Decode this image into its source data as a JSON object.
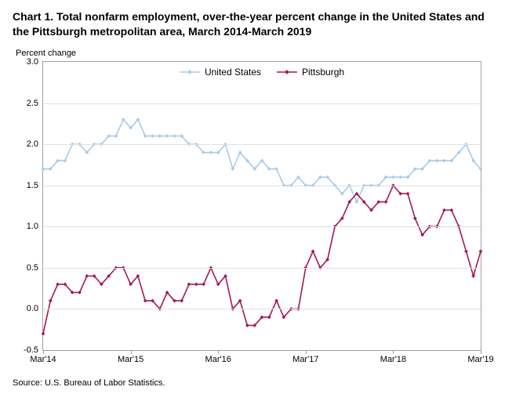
{
  "title": "Chart 1.  Total nonfarm employment, over-the-year percent change in the United States and the Pittsburgh metropolitan area, March 2014-March 2019",
  "ylabel": "Percent change",
  "source": "Source: U.S. Bureau of Labor Statistics.",
  "chart": {
    "type": "line",
    "background_color": "#ffffff",
    "grid_color": "#e0e0e0",
    "axis_color": "#a0a0a0",
    "title_fontsize": 14,
    "label_fontsize": 11,
    "tick_fontsize": 11,
    "legend_fontsize": 12,
    "line_width": 1.6,
    "marker_size": 2.4,
    "ylim": [
      -0.5,
      3.0
    ],
    "ytick_step": 0.5,
    "yticks": [
      -0.5,
      0.0,
      0.5,
      1.0,
      1.5,
      2.0,
      2.5,
      3.0
    ],
    "x_count": 61,
    "xtick_indices": [
      0,
      12,
      24,
      36,
      48,
      60
    ],
    "xtick_labels": [
      "Mar'14",
      "Mar'15",
      "Mar'16",
      "Mar'17",
      "Mar'18",
      "Mar'19"
    ],
    "legend": {
      "position": "top-center",
      "items": [
        {
          "key": "us",
          "label": "United States"
        },
        {
          "key": "pit",
          "label": "Pittsburgh"
        }
      ]
    },
    "series": {
      "us": {
        "label": "United States",
        "color": "#a8cbea",
        "marker": "diamond",
        "values": [
          1.7,
          1.7,
          1.8,
          1.8,
          2.0,
          2.0,
          1.9,
          2.0,
          2.0,
          2.1,
          2.1,
          2.3,
          2.2,
          2.3,
          2.1,
          2.1,
          2.1,
          2.1,
          2.1,
          2.1,
          2.0,
          2.0,
          1.9,
          1.9,
          1.9,
          2.0,
          1.7,
          1.9,
          1.8,
          1.7,
          1.8,
          1.7,
          1.7,
          1.5,
          1.5,
          1.6,
          1.5,
          1.5,
          1.6,
          1.6,
          1.5,
          1.4,
          1.5,
          1.3,
          1.5,
          1.5,
          1.5,
          1.6,
          1.6,
          1.6,
          1.6,
          1.7,
          1.7,
          1.8,
          1.8,
          1.8,
          1.8,
          1.9,
          2.0,
          1.8,
          1.7
        ]
      },
      "pit": {
        "label": "Pittsburgh",
        "color": "#a3195b",
        "marker": "diamond",
        "values": [
          -0.3,
          0.1,
          0.3,
          0.3,
          0.2,
          0.2,
          0.4,
          0.4,
          0.3,
          0.4,
          0.5,
          0.5,
          0.3,
          0.4,
          0.1,
          0.1,
          0.0,
          0.2,
          0.1,
          0.1,
          0.3,
          0.3,
          0.3,
          0.5,
          0.3,
          0.4,
          0.0,
          0.1,
          -0.2,
          -0.2,
          -0.1,
          -0.1,
          0.1,
          -0.1,
          0.0,
          0.0,
          0.5,
          0.7,
          0.5,
          0.6,
          1.0,
          1.1,
          1.3,
          1.4,
          1.3,
          1.2,
          1.3,
          1.3,
          1.5,
          1.4,
          1.4,
          1.1,
          0.9,
          1.0,
          1.0,
          1.2,
          1.2,
          1.0,
          0.7,
          0.4,
          0.7
        ]
      }
    }
  }
}
